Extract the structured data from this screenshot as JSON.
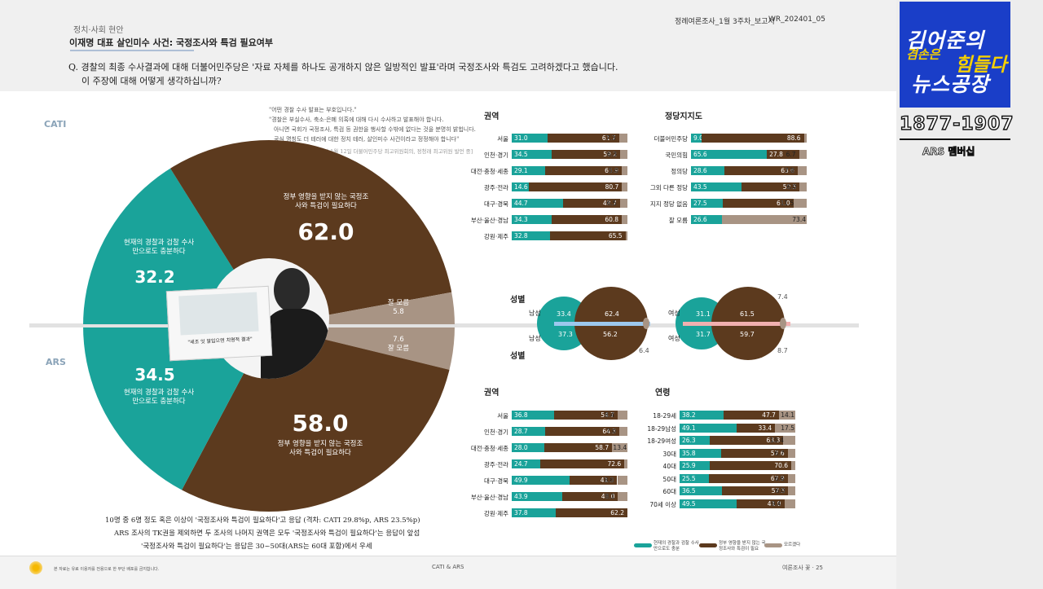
{
  "header": {
    "category": "정치·사회 현안",
    "title": "이재명 대표 살인미수 사건: 국정조사와 특검 필요여부",
    "doc_left": "정례여론조사_1월 3주차_보고서",
    "doc_right": "WR_202401_05",
    "question_line1": "Q. 경찰의 최종 수사결과에 대해 더불어민주당은 '자료 자체를 하나도 공개하지 않은 일방적인 발표'라며 국정조사와 특검도 고려하겠다고 했습니다.",
    "question_line2": "이 주장에 대해 어떻게 생각하십니까?"
  },
  "labels": {
    "cati": "CATI",
    "ars": "ARS"
  },
  "quote": {
    "lines": [
      "\"어떤 경찰 수사 발표는 부호입니다.\"",
      "\"경찰은 부실수사, 축소·은폐 의혹에 대해 다시 수사하고 발표해야 합니다.",
      "아니면 국회가 국정조사, 특검 등 권한을 행사할 수밖에 없다는 것을 분명히 밝힙니다.",
      "공식 명칭도 더 테러에 대한 정치 테러, 살인미수 사건이라고 정정해야 합니다\"",
      "[2024년 1월 12일 더불어민주당 최고위원회의, 정청래 최고위원 발언 중]"
    ],
    "photo_caption": "\"세조 잇 말입으면 치명적 결과\""
  },
  "donut": {
    "cati_need_label": "정부 영향을 받지 않는 국정조사와 특검이 필요하다",
    "cati_need_value": "62.0",
    "cati_enough_label": "현재의 경찰과 검찰 수사만으로도 충분하다",
    "cati_enough_value": "32.2",
    "cati_dk_label": "잘 모름",
    "cati_dk_value": "5.8",
    "ars_need_label": "정부 영향을 받지 않는 국정조사와 특검이 필요하다",
    "ars_need_value": "58.0",
    "ars_enough_label": "현재의 경찰과 검찰 수사만으로도 충분하다",
    "ars_enough_value": "34.5",
    "ars_dk_label": "잘 모름",
    "ars_dk_value": "7.6"
  },
  "chart_data": [
    {
      "type": "bar",
      "title": "권역",
      "survey": "CATI",
      "categories": [
        "서울",
        "인천·경기",
        "대전·충청·세종",
        "광주·전라",
        "대구·경북",
        "부산·울산·경남",
        "강원·제주"
      ],
      "series": [
        {
          "name": "현재의 경찰과 검찰 수사만으로도 충분",
          "values": [
            31.0,
            34.5,
            29.1,
            14.6,
            44.7,
            34.3,
            32.8
          ]
        },
        {
          "name": "정부 영향을 받지 않는 국정조사와 특검이 필요",
          "values": [
            61.7,
            59.2,
            65.9,
            80.7,
            48.7,
            60.8,
            65.5
          ]
        },
        {
          "name": "모르겠다",
          "values": [
            7.3,
            6.3,
            5.0,
            null,
            6.5,
            null,
            null
          ]
        }
      ]
    },
    {
      "type": "bar",
      "title": "정당지지도",
      "survey": "CATI",
      "categories": [
        "더불어민주당",
        "국민의힘",
        "정의당",
        "그외 다른 정당",
        "지지 정당 없음",
        "잘 모름"
      ],
      "series": [
        {
          "name": "현재의 경찰과 검찰 수사만으로도 충분",
          "values": [
            9.0,
            65.6,
            28.6,
            43.5,
            27.5,
            26.6
          ]
        },
        {
          "name": "정부 영향을 받지 않는 국정조사와 특검이 필요",
          "values": [
            88.6,
            27.8,
            63.6,
            50.5,
            61.0,
            null
          ]
        },
        {
          "name": "모르겠다",
          "values": [
            null,
            6.7,
            7.8,
            6.0,
            11.5,
            73.4
          ]
        }
      ]
    },
    {
      "type": "bubble",
      "title": "성별",
      "categories": [
        "남성",
        "여성"
      ],
      "cati": {
        "남성": [
          33.4,
          62.4
        ],
        "여성": [
          31.1,
          61.5
        ],
        "여성_dk": 7.4
      },
      "ars": {
        "남성": [
          37.3,
          56.2
        ],
        "남성_dk": 6.4,
        "여성": [
          31.7,
          59.7
        ],
        "여성_dk": 8.7
      }
    },
    {
      "type": "bar",
      "title": "권역",
      "survey": "ARS",
      "categories": [
        "서울",
        "인천·경기",
        "대전·충청·세종",
        "광주·전라",
        "대구·경북",
        "부산·울산·경남",
        "강원·제주"
      ],
      "series": [
        {
          "name": "현재의 경찰과 검찰 수사만으로도 충분",
          "values": [
            36.8,
            28.7,
            28.0,
            24.7,
            49.9,
            43.9,
            37.8
          ]
        },
        {
          "name": "정부 영향을 받지 않는 국정조사와 특검이 필요",
          "values": [
            54.7,
            64.3,
            58.7,
            72.6,
            41.3,
            48.0,
            62.2
          ]
        },
        {
          "name": "모르겠다",
          "values": [
            8.4,
            7.0,
            13.4,
            null,
            8.8,
            8.1,
            null
          ]
        }
      ]
    },
    {
      "type": "bar",
      "title": "연령",
      "survey": "ARS",
      "categories": [
        "18-29세",
        "18-29남성",
        "18-29여성",
        "30대",
        "40대",
        "50대",
        "60대",
        "70세 이상"
      ],
      "series": [
        {
          "name": "현재의 경찰과 검찰 수사만으로도 충분",
          "values": [
            38.2,
            49.1,
            26.3,
            35.8,
            25.9,
            25.5,
            36.5,
            49.5
          ]
        },
        {
          "name": "정부 영향을 받지 않는 국정조사와 특검이 필요",
          "values": [
            47.7,
            33.4,
            63.3,
            57.6,
            70.6,
            67.9,
            57.5,
            41.0
          ]
        },
        {
          "name": "모르겠다",
          "values": [
            14.1,
            17.5,
            10.4,
            6.7,
            null,
            6.6,
            6.0,
            9.4
          ]
        }
      ]
    }
  ],
  "charts_ui": {
    "sex_title_top": "성별",
    "sex_title_bottom": "성별",
    "male": "남성",
    "female": "여성"
  },
  "legend": {
    "teal": "현재의 경찰과 검찰 수사만으로도 충분",
    "brown": "정부 영향을 받지 않는 국정조사와 특검이 필요",
    "gray": "모르겠다",
    "colors": {
      "teal": "#1aa39a",
      "brown": "#5c3a1e",
      "gray": "#a89484"
    }
  },
  "footnotes": [
    "10명 중 6명 정도 혹은 이상이 '국정조사와 특검이 필요하다'고 응답 (격차: CATI 29.8%p, ARS 23.5%p)",
    "ARS 조사의 TK권을 제외하면 두 조사의 나머지 권역은 모두 '국정조사와 특검이 필요하다'는 응답이 앞섬",
    "'국정조사와 특검이 필요하다'는 응답은 30~50대(ARS는 60대 포함)에서 우세"
  ],
  "footer": {
    "left": "본 자료는 유료 이용자를 전용으로 한 무단 배포를 금지합니다.",
    "center": "CATI & ARS",
    "right": "여론조사 꽃 · 25"
  },
  "brand": {
    "line1": "김어준의",
    "line2a": "겸손은",
    "line2b": "힘들다",
    "line3": "뉴스공장",
    "phone": "1877-1907",
    "member": "ARS 멤버십"
  }
}
